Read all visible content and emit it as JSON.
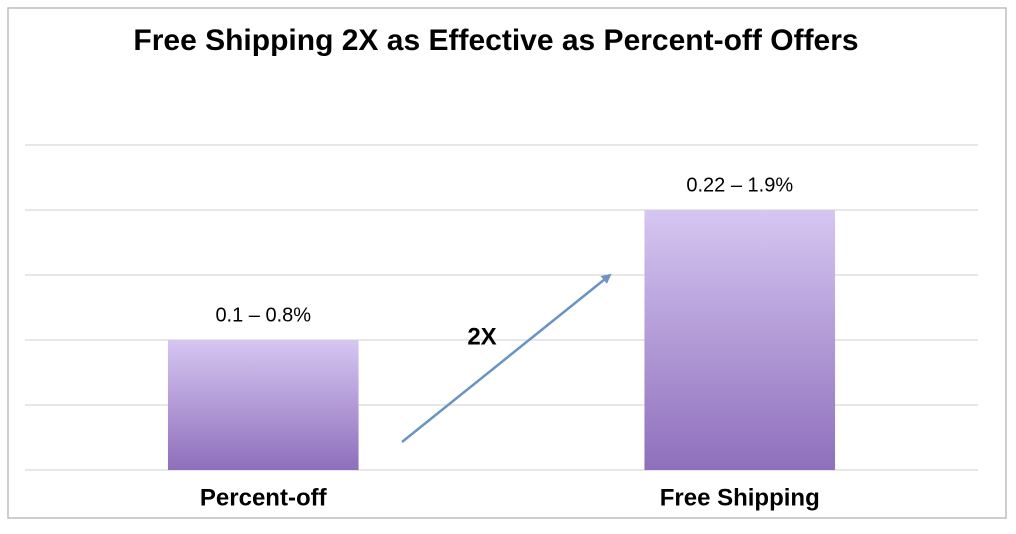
{
  "chart_data": {
    "type": "bar",
    "title": "Free Shipping 2X as Effective as Percent-off Offers",
    "categories": [
      "Percent-off",
      "Free Shipping"
    ],
    "values": [
      2,
      4
    ],
    "bar_labels": [
      "0.1 – 0.8%",
      "0.22 – 1.9%"
    ],
    "annotation": "2X",
    "ylim": [
      0,
      5
    ],
    "yticks": [
      0,
      1,
      2,
      3,
      4,
      5
    ],
    "grid": true
  }
}
